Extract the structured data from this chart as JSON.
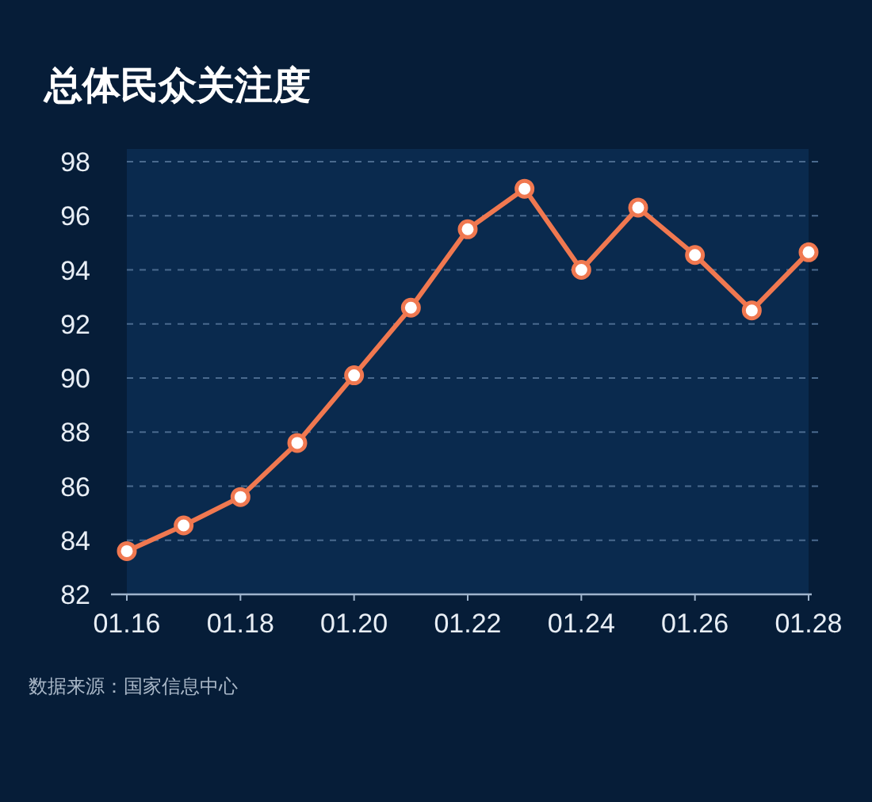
{
  "chart_data": {
    "type": "line",
    "title": "总体民众关注度",
    "categories": [
      "01.16",
      null,
      "01.18",
      null,
      "01.20",
      null,
      "01.22",
      null,
      "01.24",
      null,
      "01.26",
      null,
      "01.28"
    ],
    "values": [
      83.6,
      84.55,
      85.6,
      87.6,
      90.1,
      92.6,
      95.5,
      97.0,
      94.0,
      96.3,
      94.55,
      92.5,
      94.65
    ],
    "color": "#f07850",
    "marker": "circle",
    "line_style": "solid",
    "ylim": [
      82,
      98
    ],
    "yticks": [
      82,
      84,
      86,
      88,
      90,
      92,
      94,
      96,
      98
    ],
    "grid": "y",
    "annotations": [
      "数据来源：国家信息中心"
    ]
  }
}
